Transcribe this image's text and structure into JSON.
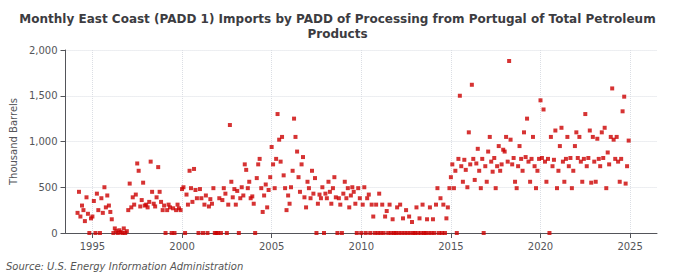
{
  "chart_data": {
    "type": "scatter",
    "title": "Monthly East Coast (PADD 1) Imports by PADD of Processing from Portugal of Total Petroleum\nProducts",
    "ylabel": "Thousand Barrels",
    "annotations": [
      "Source: U.S. Energy Information Administration"
    ],
    "color": "#cc0000",
    "marker": "square",
    "grid": true,
    "xlim": [
      1993.5,
      2026.5
    ],
    "xticks": [
      1995,
      2000,
      2005,
      2010,
      2015,
      2020,
      2025
    ],
    "ylim": [
      0,
      2000
    ],
    "yticks": [
      0,
      500,
      {
        "value": 1000,
        "label": "1,000"
      },
      {
        "value": 1500,
        "label": "1,500"
      },
      {
        "value": 2000,
        "label": "2,000"
      }
    ],
    "x": [
      1994.17,
      1994.25,
      1994.33,
      1994.42,
      1994.5,
      1994.58,
      1994.67,
      1994.75,
      1994.83,
      1994.92,
      1995.0,
      1995.08,
      1995.17,
      1995.25,
      1995.33,
      1995.42,
      1995.5,
      1995.58,
      1995.67,
      1995.75,
      1995.83,
      1995.92,
      1996.0,
      1996.08,
      1996.17,
      1996.25,
      1996.33,
      1996.42,
      1996.5,
      1996.58,
      1996.67,
      1996.75,
      1996.83,
      1996.92,
      1997.0,
      1997.08,
      1997.17,
      1997.25,
      1997.33,
      1997.42,
      1997.5,
      1997.58,
      1997.67,
      1997.75,
      1997.83,
      1997.92,
      1998.0,
      1998.08,
      1998.17,
      1998.25,
      1998.33,
      1998.42,
      1998.5,
      1998.58,
      1998.67,
      1998.75,
      1998.83,
      1998.92,
      1999.0,
      1999.08,
      1999.17,
      1999.25,
      1999.33,
      1999.42,
      1999.5,
      1999.58,
      1999.67,
      1999.75,
      1999.83,
      1999.92,
      2000.0,
      2000.08,
      2000.17,
      2000.25,
      2000.33,
      2000.42,
      2000.5,
      2000.58,
      2000.67,
      2000.75,
      2000.83,
      2000.92,
      2001.0,
      2001.08,
      2001.17,
      2001.25,
      2001.33,
      2001.42,
      2001.5,
      2001.58,
      2001.67,
      2001.75,
      2001.83,
      2001.92,
      2002.0,
      2002.08,
      2002.17,
      2002.25,
      2002.33,
      2002.42,
      2002.5,
      2002.58,
      2002.67,
      2002.75,
      2002.83,
      2002.92,
      2003.0,
      2003.08,
      2003.17,
      2003.25,
      2003.33,
      2003.42,
      2003.5,
      2003.58,
      2003.67,
      2003.75,
      2003.83,
      2003.92,
      2004.0,
      2004.08,
      2004.17,
      2004.25,
      2004.33,
      2004.42,
      2004.5,
      2004.58,
      2004.67,
      2004.75,
      2004.83,
      2004.92,
      2005.0,
      2005.08,
      2005.17,
      2005.25,
      2005.33,
      2005.42,
      2005.5,
      2005.58,
      2005.67,
      2005.75,
      2005.83,
      2005.92,
      2006.0,
      2006.08,
      2006.17,
      2006.25,
      2006.33,
      2006.42,
      2006.5,
      2006.58,
      2006.67,
      2006.75,
      2006.83,
      2006.92,
      2007.0,
      2007.08,
      2007.17,
      2007.25,
      2007.33,
      2007.42,
      2007.5,
      2007.58,
      2007.67,
      2007.75,
      2007.83,
      2007.92,
      2008.0,
      2008.08,
      2008.17,
      2008.25,
      2008.33,
      2008.42,
      2008.5,
      2008.58,
      2008.67,
      2008.75,
      2008.83,
      2008.92,
      2009.0,
      2009.08,
      2009.17,
      2009.25,
      2009.33,
      2009.42,
      2009.5,
      2009.58,
      2009.67,
      2009.75,
      2009.83,
      2009.92,
      2010.0,
      2010.08,
      2010.17,
      2010.25,
      2010.33,
      2010.42,
      2010.5,
      2010.58,
      2010.67,
      2010.75,
      2010.83,
      2010.92,
      2011.0,
      2011.08,
      2011.17,
      2011.25,
      2011.33,
      2011.42,
      2011.5,
      2011.58,
      2011.67,
      2011.75,
      2011.83,
      2011.92,
      2012.0,
      2012.08,
      2012.17,
      2012.25,
      2012.33,
      2012.42,
      2012.5,
      2012.58,
      2012.67,
      2012.75,
      2012.83,
      2012.92,
      2013.0,
      2013.08,
      2013.17,
      2013.25,
      2013.33,
      2013.42,
      2013.5,
      2013.58,
      2013.67,
      2013.75,
      2013.83,
      2013.92,
      2014.0,
      2014.08,
      2014.17,
      2014.25,
      2014.33,
      2014.42,
      2014.5,
      2014.58,
      2014.67,
      2014.75,
      2014.83,
      2014.92,
      2015.0,
      2015.08,
      2015.17,
      2015.25,
      2015.33,
      2015.42,
      2015.5,
      2015.58,
      2015.67,
      2015.75,
      2015.83,
      2015.92,
      2016.0,
      2016.08,
      2016.17,
      2016.25,
      2016.33,
      2016.42,
      2016.5,
      2016.58,
      2016.67,
      2016.75,
      2016.83,
      2016.92,
      2017.0,
      2017.08,
      2017.17,
      2017.25,
      2017.33,
      2017.42,
      2017.5,
      2017.58,
      2017.67,
      2017.75,
      2017.83,
      2017.92,
      2018.0,
      2018.08,
      2018.17,
      2018.25,
      2018.33,
      2018.42,
      2018.5,
      2018.58,
      2018.67,
      2018.75,
      2018.83,
      2018.92,
      2019.0,
      2019.08,
      2019.17,
      2019.25,
      2019.33,
      2019.42,
      2019.5,
      2019.58,
      2019.67,
      2019.75,
      2019.83,
      2019.92,
      2020.0,
      2020.08,
      2020.17,
      2020.25,
      2020.33,
      2020.42,
      2020.5,
      2020.58,
      2020.67,
      2020.75,
      2020.83,
      2020.92,
      2021.0,
      2021.08,
      2021.17,
      2021.25,
      2021.33,
      2021.42,
      2021.5,
      2021.58,
      2021.67,
      2021.75,
      2021.83,
      2021.92,
      2022.0,
      2022.08,
      2022.17,
      2022.25,
      2022.33,
      2022.42,
      2022.5,
      2022.58,
      2022.67,
      2022.75,
      2022.83,
      2022.92,
      2023.0,
      2023.08,
      2023.17,
      2023.25,
      2023.33,
      2023.42,
      2023.5,
      2023.58,
      2023.67,
      2023.75,
      2023.83,
      2023.92,
      2024.0,
      2024.08,
      2024.17,
      2024.25,
      2024.33,
      2024.42,
      2024.5,
      2024.58,
      2024.67,
      2024.75,
      2024.83,
      2024.92
    ],
    "values": [
      220,
      450,
      180,
      300,
      250,
      130,
      390,
      210,
      0,
      160,
      180,
      350,
      0,
      430,
      250,
      0,
      380,
      220,
      500,
      280,
      410,
      300,
      230,
      150,
      0,
      50,
      20,
      0,
      30,
      10,
      0,
      50,
      0,
      20,
      250,
      540,
      280,
      390,
      310,
      420,
      760,
      680,
      290,
      360,
      550,
      300,
      310,
      280,
      340,
      780,
      450,
      320,
      290,
      390,
      720,
      450,
      340,
      250,
      300,
      0,
      250,
      310,
      280,
      0,
      270,
      0,
      250,
      310,
      270,
      250,
      480,
      500,
      0,
      420,
      310,
      680,
      490,
      340,
      700,
      470,
      380,
      0,
      480,
      380,
      0,
      310,
      410,
      0,
      290,
      370,
      320,
      490,
      0,
      0,
      0,
      380,
      0,
      360,
      490,
      430,
      0,
      310,
      1180,
      560,
      390,
      480,
      310,
      460,
      0,
      380,
      500,
      410,
      750,
      690,
      490,
      560,
      380,
      400,
      320,
      0,
      600,
      750,
      810,
      490,
      230,
      410,
      530,
      280,
      470,
      610,
      940,
      750,
      490,
      810,
      1300,
      1020,
      780,
      1050,
      630,
      490,
      250,
      410,
      320,
      500,
      680,
      1250,
      1050,
      890,
      610,
      450,
      750,
      830,
      390,
      280,
      560,
      490,
      380,
      680,
      430,
      600,
      0,
      320,
      420,
      380,
      500,
      0,
      430,
      380,
      560,
      450,
      320,
      490,
      610,
      390,
      0,
      380,
      310,
      0,
      430,
      560,
      380,
      490,
      280,
      410,
      500,
      450,
      320,
      0,
      490,
      380,
      0,
      310,
      500,
      0,
      380,
      420,
      0,
      310,
      180,
      0,
      310,
      0,
      430,
      0,
      310,
      0,
      180,
      240,
      0,
      310,
      0,
      150,
      0,
      0,
      280,
      0,
      310,
      0,
      160,
      0,
      250,
      0,
      180,
      0,
      120,
      0,
      0,
      280,
      0,
      160,
      0,
      310,
      0,
      0,
      150,
      0,
      280,
      0,
      150,
      0,
      310,
      490,
      0,
      380,
      0,
      310,
      0,
      160,
      280,
      490,
      610,
      750,
      490,
      680,
      0,
      810,
      1500,
      730,
      560,
      800,
      690,
      500,
      1100,
      750,
      1620,
      810,
      580,
      760,
      920,
      680,
      490,
      810,
      0,
      730,
      560,
      890,
      1050,
      780,
      670,
      820,
      490,
      730,
      950,
      680,
      750,
      910,
      890,
      1050,
      780,
      1880,
      1020,
      750,
      820,
      560,
      490,
      730,
      950,
      810,
      680,
      1100,
      830,
      1250,
      780,
      560,
      810,
      1050,
      730,
      490,
      680,
      810,
      1450,
      820,
      1350,
      780,
      560,
      810,
      0,
      1050,
      730,
      800,
      1120,
      490,
      680,
      950,
      1150,
      780,
      560,
      810,
      1050,
      730,
      820,
      490,
      680,
      950,
      1100,
      820,
      1050,
      780,
      560,
      810,
      1300,
      730,
      820,
      1120,
      550,
      1050,
      780,
      560,
      1030,
      810,
      730,
      1100,
      820,
      1150,
      490,
      880,
      750,
      1050,
      1580,
      1020,
      810,
      1050,
      780,
      560,
      810,
      1330,
      1490,
      540,
      730,
      1010
    ]
  }
}
